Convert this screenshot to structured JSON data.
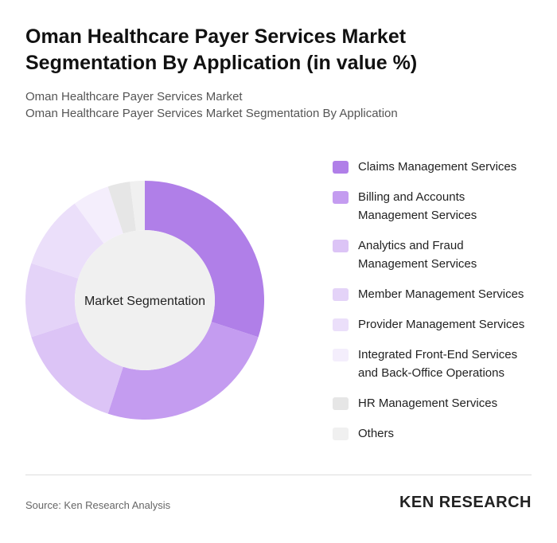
{
  "header": {
    "title": "Oman Healthcare Payer Services Market Segmentation By Application (in value %)",
    "subtitle_1": "Oman Healthcare Payer Services Market",
    "subtitle_2": "Oman Healthcare Payer Services Market Segmentation By Application"
  },
  "chart_data": {
    "type": "donut",
    "center_label": "Market Segmentation",
    "categories": [
      "Claims Management Services",
      "Billing and Accounts Management Services",
      "Analytics and Fraud Management Services",
      "Member Management Services",
      "Provider Management Services",
      "Integrated Front-End Services and Back-Office Operations",
      "HR Management Services",
      "Others"
    ],
    "values": [
      30,
      25,
      15,
      10,
      10,
      5,
      3,
      2
    ],
    "colors": [
      "#b07fe8",
      "#c49cf0",
      "#dcc4f6",
      "#e4d3f8",
      "#ebdffa",
      "#f4eefc",
      "#e6e6e6",
      "#f0f0f0"
    ]
  },
  "footer": {
    "source": "Source: Ken Research Analysis",
    "logo": "KEN RESEARCH"
  }
}
